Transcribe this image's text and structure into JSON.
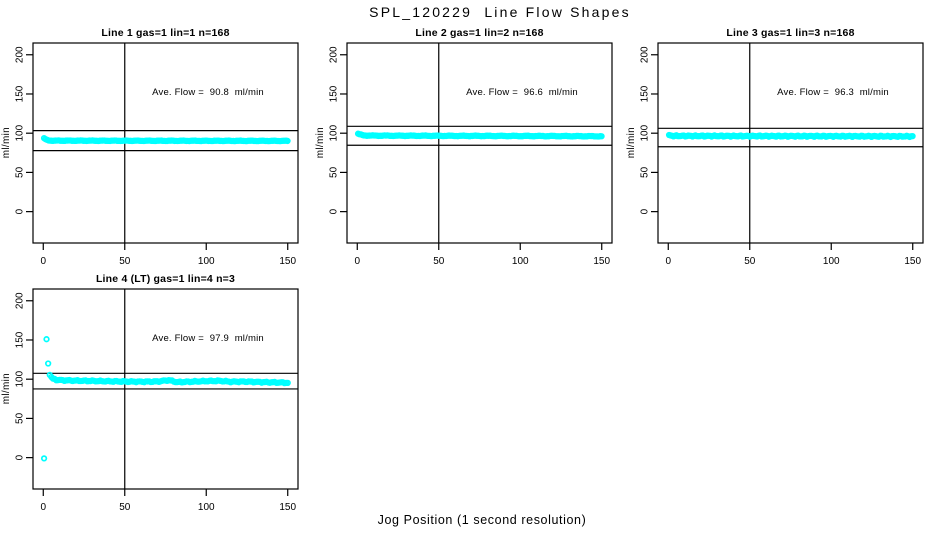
{
  "figure": {
    "title": "SPL_120229  Line Flow Shapes",
    "xlabel": "Jog Position (1 second resolution)"
  },
  "colors": {
    "points": "#00ffff",
    "axis": "#000000",
    "background": "#ffffff"
  },
  "chart_data": [
    {
      "type": "scatter",
      "title": "Line 1 gas=1 lin=1 n=168",
      "ylabel": "ml/min",
      "annotation": "Ave. Flow =  90.8  ml/min",
      "ave_flow": 90.8,
      "n": 168,
      "x_ticks": [
        0,
        50,
        100,
        150
      ],
      "y_ticks": [
        0,
        50,
        100,
        150,
        200
      ],
      "xlim": [
        -6.3,
        156.3
      ],
      "ylim": [
        -40,
        215
      ],
      "vline_x": 50,
      "ref_lines": [
        103.3,
        77.8
      ],
      "x_start": 0.5,
      "x_end": 150,
      "x_step": 0.9,
      "band_anchors": [
        [
          0.5,
          93.5
        ],
        [
          2,
          91.5
        ],
        [
          3,
          90.8
        ],
        [
          6,
          90.5
        ],
        [
          40,
          90.4
        ],
        [
          150,
          90.2
        ]
      ],
      "noise": 0.25,
      "noise_freq": 0.9,
      "outliers": []
    },
    {
      "type": "scatter",
      "title": "Line 2 gas=1 lin=2 n=168",
      "ylabel": "ml/min",
      "annotation": "Ave. Flow =  96.6  ml/min",
      "ave_flow": 96.6,
      "n": 168,
      "x_ticks": [
        0,
        50,
        100,
        150
      ],
      "y_ticks": [
        0,
        50,
        100,
        150,
        200
      ],
      "xlim": [
        -6.3,
        156.3
      ],
      "ylim": [
        -40,
        215
      ],
      "vline_x": 50,
      "ref_lines": [
        108.8,
        84.6
      ],
      "x_start": 0.5,
      "x_end": 150,
      "x_step": 0.9,
      "band_anchors": [
        [
          0.5,
          99.2
        ],
        [
          2,
          98.1
        ],
        [
          4,
          97.2
        ],
        [
          10,
          96.9
        ],
        [
          60,
          96.6
        ],
        [
          110,
          96.4
        ],
        [
          150,
          96.1
        ]
      ],
      "noise": 0.3,
      "noise_freq": 0.8,
      "outliers": []
    },
    {
      "type": "scatter",
      "title": "Line 3 gas=1 lin=3 n=168",
      "ylabel": "ml/min",
      "annotation": "Ave. Flow =  96.3  ml/min",
      "ave_flow": 96.3,
      "n": 168,
      "x_ticks": [
        0,
        50,
        100,
        150
      ],
      "y_ticks": [
        0,
        50,
        100,
        150,
        200
      ],
      "xlim": [
        -6.3,
        156.3
      ],
      "ylim": [
        -40,
        215
      ],
      "vline_x": 50,
      "ref_lines": [
        106.2,
        82.7
      ],
      "x_start": 0.5,
      "x_end": 150,
      "x_step": 0.9,
      "band_anchors": [
        [
          0.5,
          97.2
        ],
        [
          3,
          96.6
        ],
        [
          40,
          96.4
        ],
        [
          100,
          96.2
        ],
        [
          150,
          96.0
        ]
      ],
      "noise": 0.55,
      "noise_freq": 1.6,
      "outliers": []
    },
    {
      "type": "scatter",
      "title": "Line 4 (LT) gas=1 lin=4 n=3",
      "ylabel": "ml/min",
      "annotation": "Ave. Flow =  97.9  ml/min",
      "ave_flow": 97.9,
      "n": 3,
      "x_ticks": [
        0,
        50,
        100,
        150
      ],
      "y_ticks": [
        0,
        50,
        100,
        150,
        200
      ],
      "xlim": [
        -6.3,
        156.3
      ],
      "ylim": [
        -40,
        215
      ],
      "vline_x": 50,
      "ref_lines": [
        107.5,
        87.6
      ],
      "x_start": 4,
      "x_end": 150,
      "x_step": 1,
      "band_anchors": [
        [
          4,
          106
        ],
        [
          5,
          102.5
        ],
        [
          6,
          100.5
        ],
        [
          8,
          99.3
        ],
        [
          12,
          98.6
        ],
        [
          20,
          98.2
        ],
        [
          30,
          97.8
        ],
        [
          45,
          97.2
        ],
        [
          60,
          96.8
        ],
        [
          70,
          97.0
        ],
        [
          77,
          98.8
        ],
        [
          82,
          96.3
        ],
        [
          90,
          96.8
        ],
        [
          100,
          97.6
        ],
        [
          108,
          97.9
        ],
        [
          115,
          96.8
        ],
        [
          125,
          96.9
        ],
        [
          135,
          96.2
        ],
        [
          145,
          95.8
        ],
        [
          150,
          95.4
        ]
      ],
      "noise": 0.5,
      "noise_freq": 1.3,
      "outliers": [
        [
          0.5,
          -1
        ],
        [
          2,
          151
        ],
        [
          3,
          120
        ]
      ]
    }
  ]
}
